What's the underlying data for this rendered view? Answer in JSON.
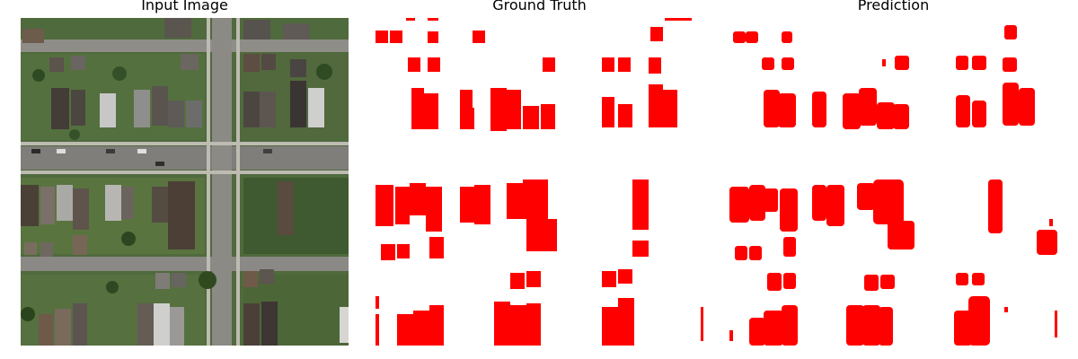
{
  "titles": {
    "input": "Input Image",
    "ground_truth": "Ground Truth",
    "prediction": "Prediction"
  },
  "colors": {
    "mask": "#ff0000",
    "background": "#ffffff",
    "grass": "#4d6b3a",
    "road": "#8d8d8a",
    "sidewalk": "#b8b6ad"
  }
}
